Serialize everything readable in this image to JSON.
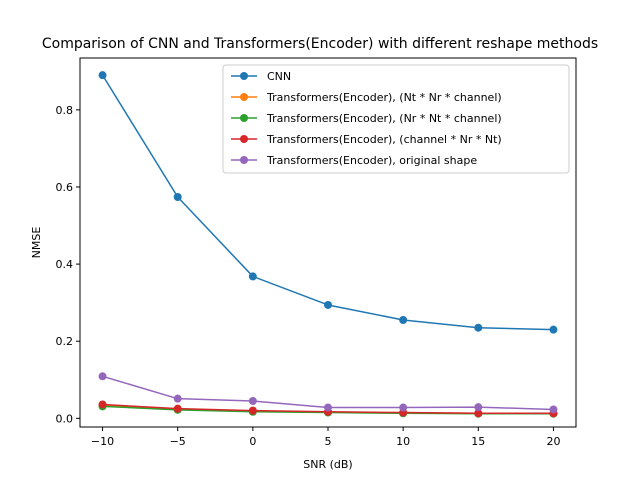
{
  "chart_data": {
    "type": "line",
    "title": "Comparison of CNN and Transformers(Encoder) with different reshape methods",
    "xlabel": "SNR (dB)",
    "ylabel": "NMSE",
    "x": [
      -10,
      -5,
      0,
      5,
      10,
      15,
      20
    ],
    "x_ticks": [
      -10,
      -5,
      0,
      5,
      10,
      15,
      20
    ],
    "x_tick_labels": [
      "−10",
      "−5",
      "0",
      "5",
      "10",
      "15",
      "20"
    ],
    "y_ticks": [
      0.0,
      0.2,
      0.4,
      0.6,
      0.8
    ],
    "y_tick_labels": [
      "0.0",
      "0.2",
      "0.4",
      "0.6",
      "0.8"
    ],
    "xlim": [
      -11.5,
      21.5
    ],
    "ylim": [
      -0.0225,
      0.9345
    ],
    "grid": false,
    "legend_position": "upper right",
    "series": [
      {
        "name": "CNN",
        "color": "#1f77b4",
        "marker": "circle",
        "values": [
          0.89,
          0.574,
          0.368,
          0.294,
          0.255,
          0.235,
          0.23
        ]
      },
      {
        "name": "Transformers(Encoder), (Nt * Nr * channel)",
        "color": "#ff7f0e",
        "marker": "circle",
        "values": [
          0.033,
          0.024,
          0.019,
          0.016,
          0.014,
          0.013,
          0.013
        ]
      },
      {
        "name": "Transformers(Encoder), (Nr * Nt * channel)",
        "color": "#2ca02c",
        "marker": "circle",
        "values": [
          0.031,
          0.022,
          0.017,
          0.015,
          0.013,
          0.012,
          0.012
        ]
      },
      {
        "name": "Transformers(Encoder), (channel * Nr * Nt)",
        "color": "#d62728",
        "marker": "circle",
        "values": [
          0.036,
          0.025,
          0.02,
          0.017,
          0.015,
          0.013,
          0.013
        ]
      },
      {
        "name": "Transformers(Encoder), original shape",
        "color": "#9467bd",
        "marker": "circle",
        "values": [
          0.109,
          0.051,
          0.045,
          0.028,
          0.028,
          0.029,
          0.023
        ]
      }
    ]
  }
}
